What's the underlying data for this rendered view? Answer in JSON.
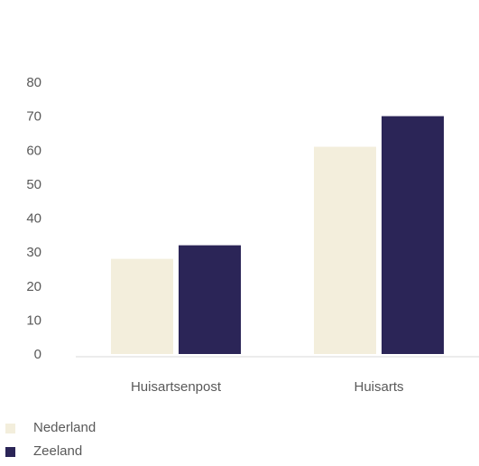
{
  "chart_data": {
    "type": "bar",
    "categories": [
      "Huisartsenpost",
      "Huisarts"
    ],
    "series": [
      {
        "name": "Nederland",
        "values": [
          28,
          61
        ],
        "color": "#F3EEDC"
      },
      {
        "name": "Zeeland",
        "values": [
          32,
          70
        ],
        "color": "#2B2557"
      }
    ],
    "title": "",
    "xlabel": "",
    "ylabel": "",
    "ylim": [
      0,
      80
    ],
    "yticks": [
      0,
      10,
      20,
      30,
      40,
      50,
      60,
      70,
      80
    ],
    "grid": false,
    "legend_position": "bottom-left"
  },
  "legend": {
    "items": [
      {
        "label": "Nederland",
        "color": "#F3EEDC"
      },
      {
        "label": "Zeeland",
        "color": "#2B2557"
      }
    ]
  }
}
